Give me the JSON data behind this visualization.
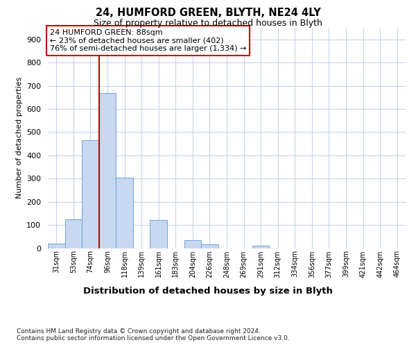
{
  "title_line1": "24, HUMFORD GREEN, BLYTH, NE24 4LY",
  "title_line2": "Size of property relative to detached houses in Blyth",
  "xlabel": "Distribution of detached houses by size in Blyth",
  "ylabel": "Number of detached properties",
  "footnote": "Contains HM Land Registry data © Crown copyright and database right 2024.\nContains public sector information licensed under the Open Government Licence v3.0.",
  "bin_labels": [
    "31sqm",
    "53sqm",
    "74sqm",
    "96sqm",
    "118sqm",
    "139sqm",
    "161sqm",
    "183sqm",
    "204sqm",
    "226sqm",
    "248sqm",
    "269sqm",
    "291sqm",
    "312sqm",
    "334sqm",
    "356sqm",
    "377sqm",
    "399sqm",
    "421sqm",
    "442sqm",
    "464sqm"
  ],
  "bar_values": [
    20,
    125,
    465,
    670,
    305,
    0,
    120,
    0,
    35,
    15,
    0,
    0,
    10,
    0,
    0,
    0,
    0,
    0,
    0,
    0,
    0
  ],
  "bar_color": "#c8d8f0",
  "bar_edge_color": "#7aabda",
  "vline_color": "#cc0000",
  "vline_position": 3,
  "annotation_text": "24 HUMFORD GREEN: 88sqm\n← 23% of detached houses are smaller (402)\n76% of semi-detached houses are larger (1,334) →",
  "annotation_box_facecolor": "white",
  "annotation_box_edgecolor": "#cc0000",
  "ylim": [
    0,
    950
  ],
  "yticks": [
    0,
    100,
    200,
    300,
    400,
    500,
    600,
    700,
    800,
    900
  ],
  "background_color": "#ffffff",
  "plot_bg_color": "#ffffff",
  "grid_color": "#c8d4e8"
}
